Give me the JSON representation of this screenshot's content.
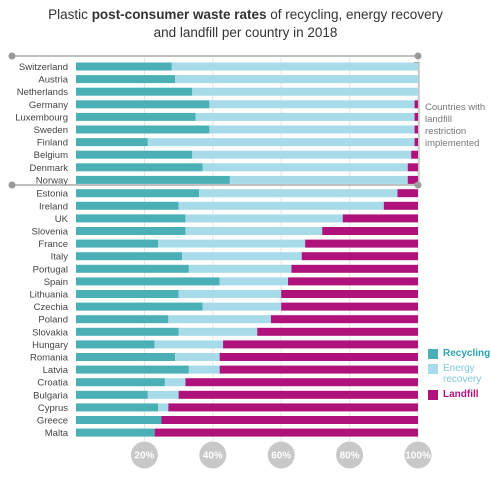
{
  "title": {
    "prefix": "Plastic ",
    "bold": "post-consumer waste rates",
    "suffix_line1": " of recycling, energy recovery",
    "line2": "and landfill per country in 2018"
  },
  "note": "Countries with landfill restriction implemented",
  "legend": [
    {
      "label": "Recycling",
      "color": "#4ab0b6"
    },
    {
      "label": "Energy recovery",
      "color": "#a8dbe9"
    },
    {
      "label": "Landfill",
      "color": "#b0127c"
    }
  ],
  "chart_data": {
    "type": "bar",
    "orientation": "horizontal",
    "stacked": true,
    "x_ticks": [
      "20%",
      "40%",
      "60%",
      "80%",
      "100%"
    ],
    "xlim": [
      0,
      100
    ],
    "categories": [
      "Switzerland",
      "Austria",
      "Netherlands",
      "Germany",
      "Luxembourg",
      "Sweden",
      "Finland",
      "Belgium",
      "Denmark",
      "Norway",
      "Estonia",
      "Ireland",
      "UK",
      "Slovenia",
      "France",
      "Italy",
      "Portugal",
      "Spain",
      "Lithuania",
      "Czechia",
      "Poland",
      "Slovakia",
      "Hungary",
      "Romania",
      "Latvia",
      "Croatia",
      "Bulgaria",
      "Cyprus",
      "Greece",
      "Malta"
    ],
    "groups": [
      {
        "label": "Countries with landfill restriction implemented",
        "count": 10
      },
      {
        "label": "",
        "count": 20
      }
    ],
    "series": [
      {
        "name": "Recycling",
        "values": [
          28,
          29,
          34,
          39,
          35,
          39,
          21,
          34,
          37,
          45,
          36,
          30,
          32,
          32,
          24,
          31,
          33,
          42,
          30,
          37,
          27,
          30,
          23,
          29,
          33,
          26,
          21,
          24,
          25,
          23
        ]
      },
      {
        "name": "Energy recovery",
        "values": [
          72,
          71,
          66,
          60,
          64,
          60,
          78,
          64,
          60,
          52,
          58,
          60,
          46,
          40,
          43,
          35,
          30,
          20,
          30,
          23,
          30,
          23,
          20,
          13,
          9,
          6,
          9,
          3,
          0,
          0
        ]
      },
      {
        "name": "Landfill",
        "values": [
          0,
          0,
          0,
          1,
          1,
          1,
          1,
          2,
          3,
          3,
          6,
          10,
          22,
          28,
          33,
          34,
          37,
          38,
          40,
          40,
          43,
          47,
          57,
          58,
          58,
          68,
          70,
          73,
          75,
          77
        ]
      }
    ]
  }
}
